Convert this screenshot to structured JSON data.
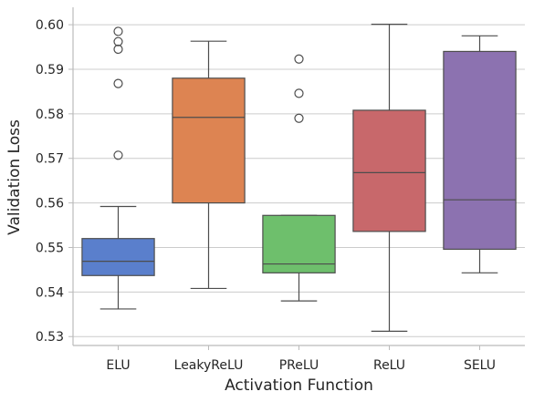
{
  "chart_data": {
    "type": "box",
    "title": "",
    "xlabel": "Activation Function",
    "ylabel": "Validation Loss",
    "ylim": [
      0.528,
      0.6035
    ],
    "yticks": [
      0.53,
      0.54,
      0.55,
      0.56,
      0.57,
      0.58,
      0.59,
      0.6
    ],
    "ytick_labels": [
      "0.53",
      "0.54",
      "0.55",
      "0.56",
      "0.57",
      "0.58",
      "0.59",
      "0.60"
    ],
    "grid": "horizontal",
    "categories": [
      "ELU",
      "LeakyReLU",
      "PReLU",
      "ReLU",
      "SELU"
    ],
    "boxes": [
      {
        "name": "ELU",
        "color": "#5a7fcc",
        "whislo": 0.5362,
        "q1": 0.5437,
        "med": 0.5469,
        "q3": 0.552,
        "whishi": 0.5592,
        "fliers": [
          0.5707,
          0.5868,
          0.5945,
          0.5962,
          0.5985
        ]
      },
      {
        "name": "LeakyReLU",
        "color": "#dd8452",
        "whislo": 0.5408,
        "q1": 0.56,
        "med": 0.5792,
        "q3": 0.588,
        "whishi": 0.5963,
        "fliers": []
      },
      {
        "name": "PReLU",
        "color": "#6ebf6c",
        "whislo": 0.538,
        "q1": 0.5443,
        "med": 0.5463,
        "q3": 0.5572,
        "whishi": 0.5572,
        "fliers": [
          0.579,
          0.5846,
          0.5923
        ]
      },
      {
        "name": "ReLU",
        "color": "#c8686b",
        "whislo": 0.5312,
        "q1": 0.5536,
        "med": 0.5668,
        "q3": 0.5808,
        "whishi": 0.6001,
        "fliers": []
      },
      {
        "name": "SELU",
        "color": "#8c72b0",
        "whislo": 0.5443,
        "q1": 0.5496,
        "med": 0.5607,
        "q3": 0.594,
        "whishi": 0.5975,
        "fliers": []
      }
    ]
  }
}
